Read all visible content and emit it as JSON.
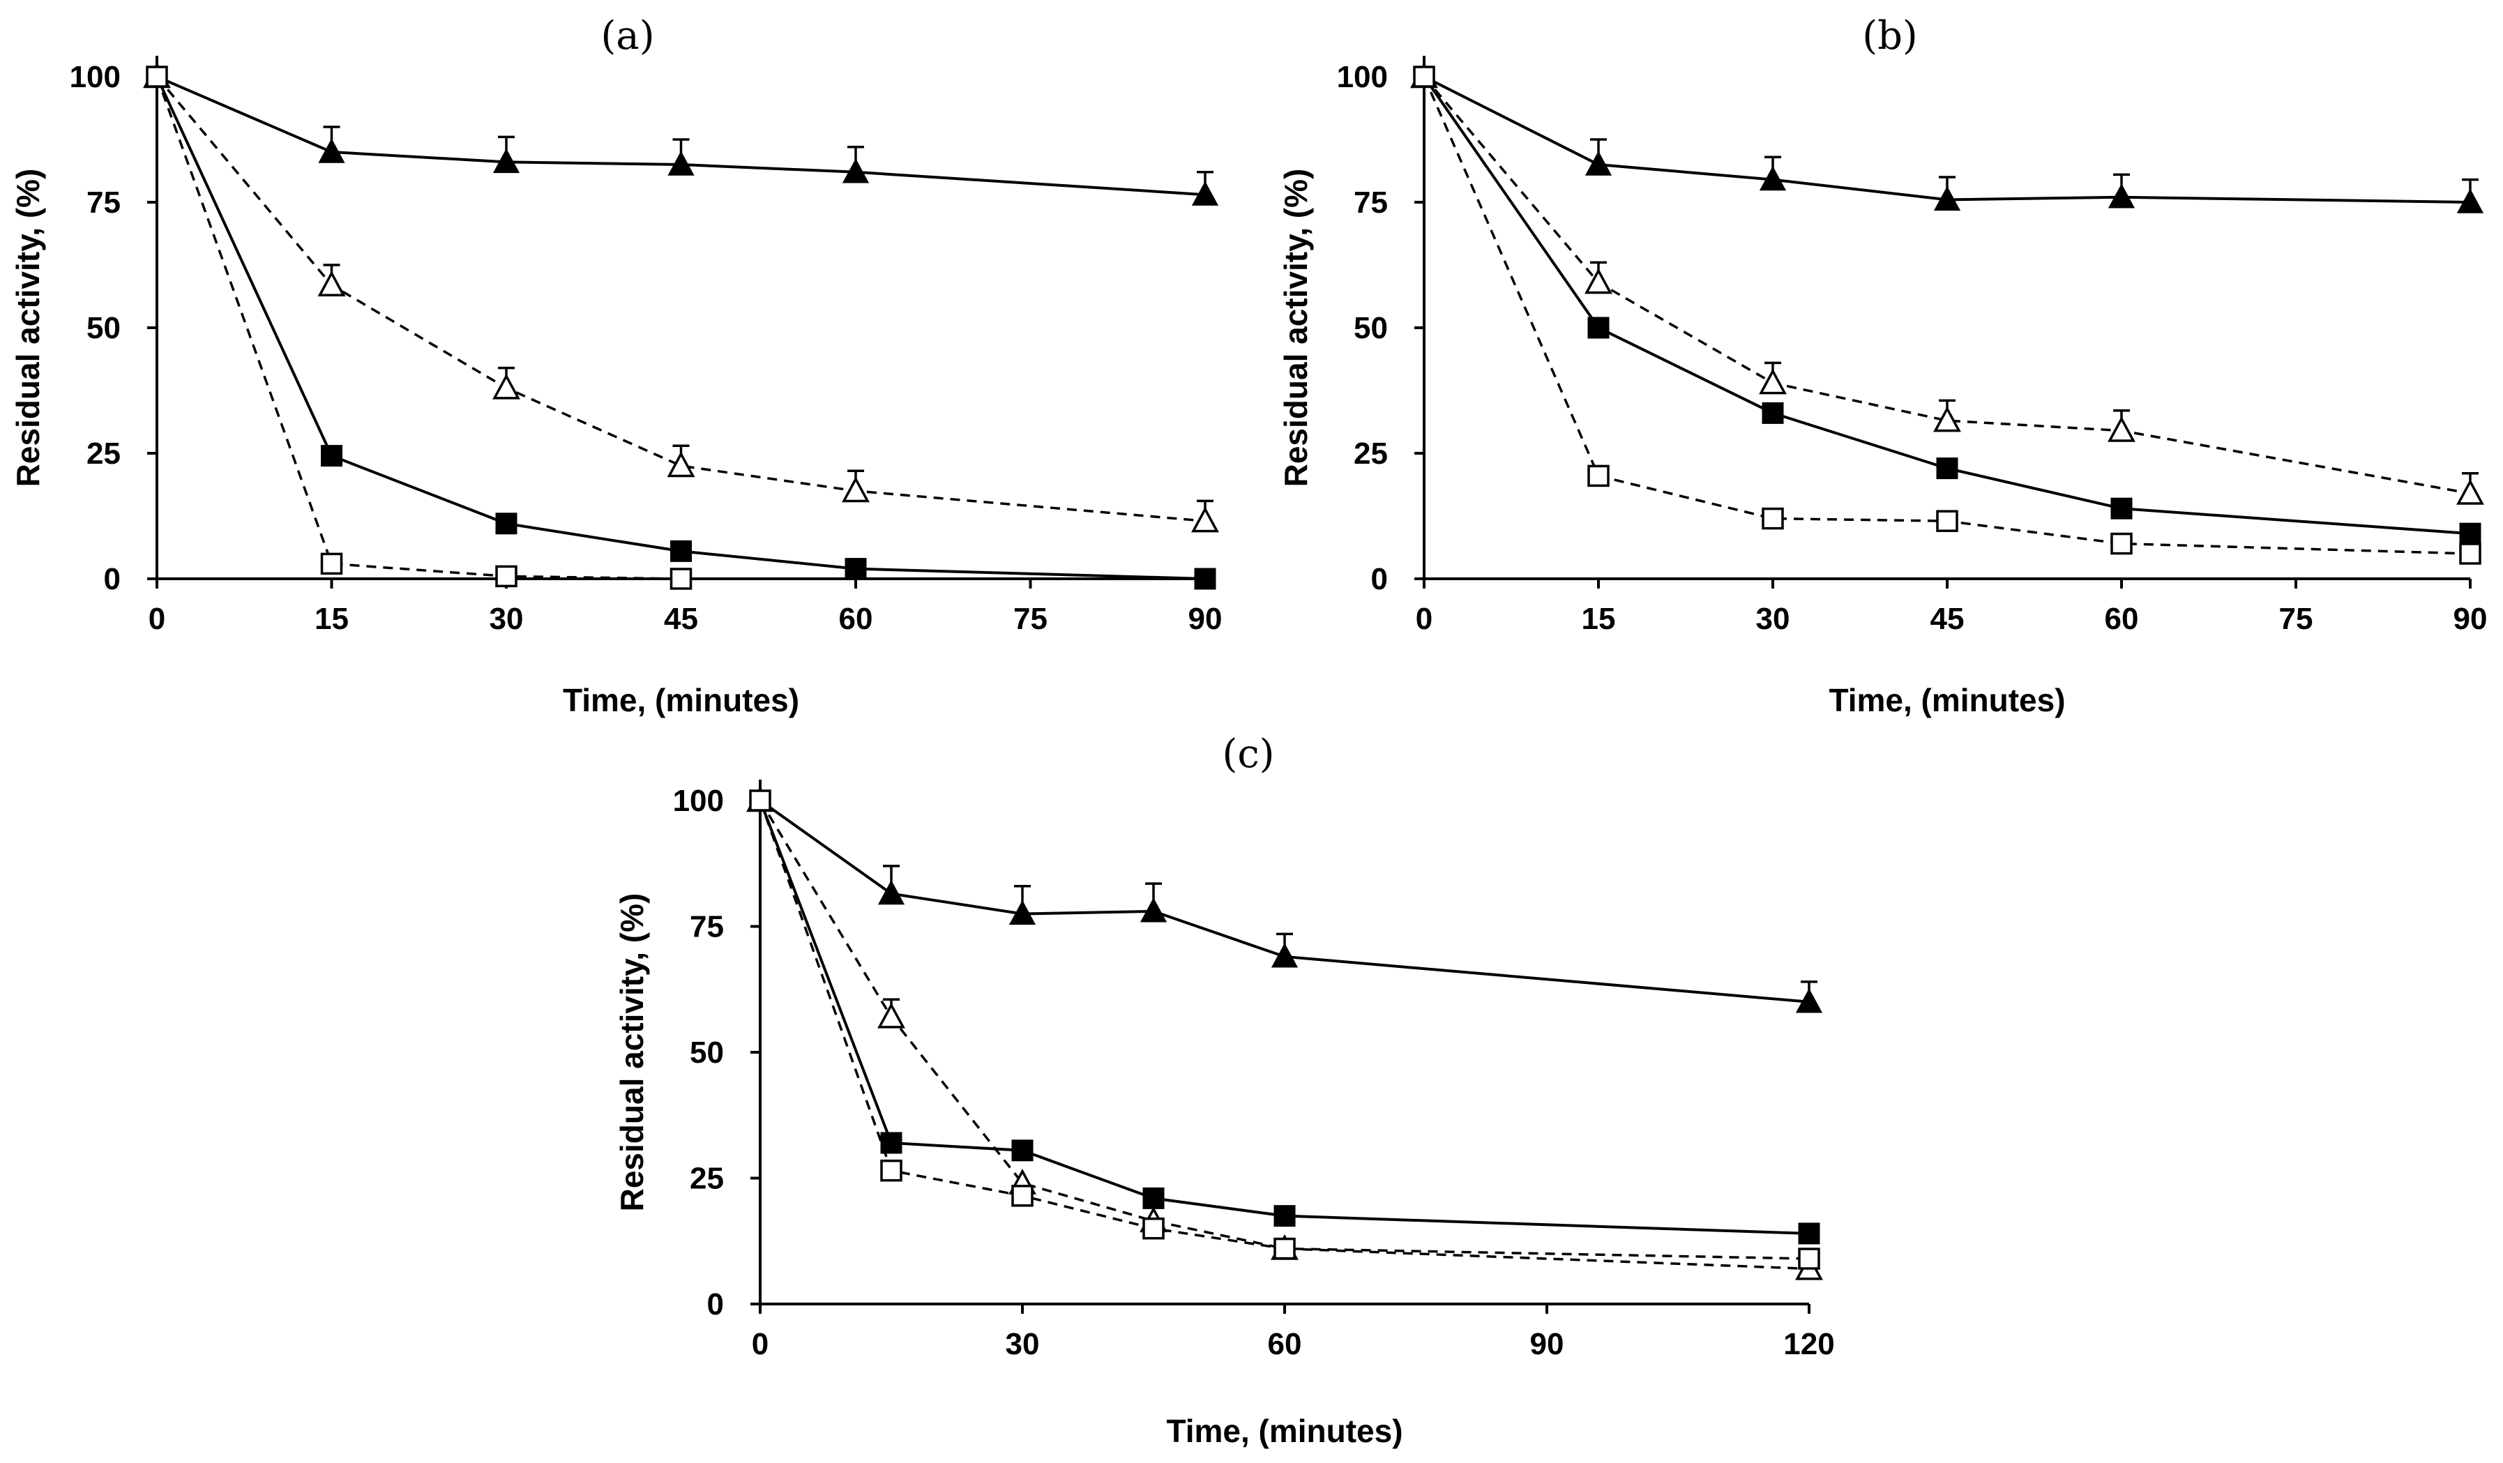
{
  "chart_data": [
    {
      "type": "line",
      "title": "(a)",
      "xlabel": "Time, (minutes)",
      "ylabel": "Residual activity, (%)",
      "xlim": [
        0,
        90
      ],
      "ylim": [
        0,
        100
      ],
      "xticks": [
        "0",
        "15",
        "30",
        "45",
        "60",
        "75",
        "90"
      ],
      "yticks": [
        "0",
        "25",
        "50",
        "75",
        "100"
      ],
      "series": [
        {
          "name": "filled-triangle",
          "marker": "triangle-filled",
          "line": "solid",
          "x": [
            0,
            15,
            30,
            45,
            60,
            90
          ],
          "y": [
            100,
            85,
            83,
            82.5,
            81,
            76.5
          ],
          "err": [
            0,
            5,
            5,
            5,
            5,
            4.5
          ]
        },
        {
          "name": "open-triangle",
          "marker": "triangle-open",
          "line": "dashed",
          "x": [
            0,
            15,
            30,
            45,
            60,
            90
          ],
          "y": [
            100,
            58.5,
            38,
            22.5,
            17.5,
            11.5
          ],
          "err": [
            0,
            4,
            4,
            4,
            4,
            4
          ]
        },
        {
          "name": "filled-square",
          "marker": "square-filled",
          "line": "solid",
          "x": [
            0,
            15,
            30,
            45,
            60,
            90
          ],
          "y": [
            100,
            24.5,
            11,
            5.5,
            2,
            0
          ],
          "err": [
            0,
            0,
            0,
            0,
            0,
            0
          ]
        },
        {
          "name": "open-square",
          "marker": "square-open",
          "line": "dashed",
          "x": [
            0,
            15,
            30,
            45
          ],
          "y": [
            100,
            3,
            0.5,
            0
          ],
          "err": [
            0,
            0,
            0,
            0
          ]
        }
      ]
    },
    {
      "type": "line",
      "title": "(b)",
      "xlabel": "Time, (minutes)",
      "ylabel": "Residual activity, (%)",
      "xlim": [
        0,
        90
      ],
      "ylim": [
        0,
        100
      ],
      "xticks": [
        "0",
        "15",
        "30",
        "45",
        "60",
        "75",
        "90"
      ],
      "yticks": [
        "0",
        "25",
        "50",
        "75",
        "100"
      ],
      "series": [
        {
          "name": "filled-triangle",
          "marker": "triangle-filled",
          "line": "solid",
          "x": [
            0,
            15,
            30,
            45,
            60,
            90
          ],
          "y": [
            100,
            82.5,
            79.5,
            75.5,
            76,
            75
          ],
          "err": [
            0,
            5,
            4.5,
            4.5,
            4.5,
            4.5
          ]
        },
        {
          "name": "open-triangle",
          "marker": "triangle-open",
          "line": "dashed",
          "x": [
            0,
            15,
            30,
            45,
            60,
            90
          ],
          "y": [
            100,
            59,
            39,
            31.5,
            29.5,
            17
          ],
          "err": [
            0,
            4,
            4,
            4,
            4,
            4
          ]
        },
        {
          "name": "filled-square",
          "marker": "square-filled",
          "line": "solid",
          "x": [
            0,
            15,
            30,
            45,
            60,
            90
          ],
          "y": [
            100,
            50,
            33,
            22,
            14,
            9
          ],
          "err": [
            0,
            1.5,
            0,
            0,
            0,
            0
          ]
        },
        {
          "name": "open-square",
          "marker": "square-open",
          "line": "dashed",
          "x": [
            0,
            15,
            30,
            45,
            60,
            90
          ],
          "y": [
            100,
            20.5,
            12,
            11.5,
            7,
            5
          ],
          "err": [
            0,
            0,
            0,
            0,
            0,
            0
          ]
        }
      ]
    },
    {
      "type": "line",
      "title": "(c)",
      "xlabel": "Time, (minutes)",
      "ylabel": "Residual activity, (%)",
      "xlim": [
        0,
        120
      ],
      "ylim": [
        0,
        100
      ],
      "xticks": [
        "0",
        "30",
        "60",
        "90",
        "120"
      ],
      "yticks": [
        "0",
        "25",
        "50",
        "75",
        "100"
      ],
      "series": [
        {
          "name": "filled-triangle",
          "marker": "triangle-filled",
          "line": "solid",
          "x": [
            0,
            15,
            30,
            45,
            60,
            120
          ],
          "y": [
            100,
            81.5,
            77.5,
            78,
            69,
            60
          ],
          "err": [
            0,
            5.5,
            5.5,
            5.5,
            4.5,
            4
          ]
        },
        {
          "name": "open-triangle",
          "marker": "triangle-open",
          "line": "dashed",
          "x": [
            0,
            15,
            30,
            45,
            60,
            120
          ],
          "y": [
            100,
            57,
            24,
            16.5,
            11,
            7
          ],
          "err": [
            0,
            3.5,
            0,
            0,
            0,
            0
          ]
        },
        {
          "name": "filled-square",
          "marker": "square-filled",
          "line": "solid",
          "x": [
            0,
            15,
            30,
            45,
            60,
            120
          ],
          "y": [
            100,
            32,
            30.5,
            21,
            17.5,
            14
          ],
          "err": [
            0,
            0,
            0,
            0,
            0,
            0
          ]
        },
        {
          "name": "open-square",
          "marker": "square-open",
          "line": "dashed",
          "x": [
            0,
            15,
            30,
            45,
            60,
            120
          ],
          "y": [
            100,
            26.5,
            21.5,
            15,
            11,
            9
          ],
          "err": [
            0,
            0,
            0,
            0,
            0,
            0
          ]
        }
      ]
    }
  ]
}
